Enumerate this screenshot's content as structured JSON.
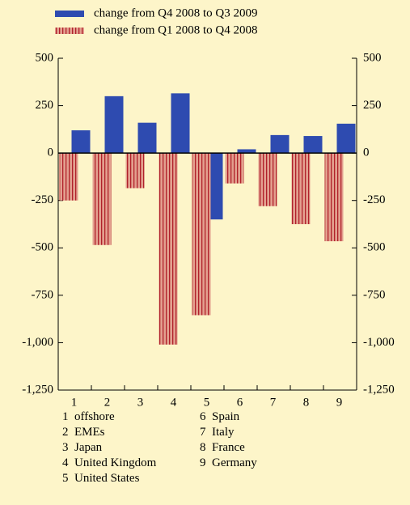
{
  "chart_data": {
    "type": "bar",
    "categories": [
      "1",
      "2",
      "3",
      "4",
      "5",
      "6",
      "7",
      "8",
      "9"
    ],
    "category_names": [
      "offshore",
      "EMEs",
      "Japan",
      "United Kingdom",
      "United States",
      "Spain",
      "Italy",
      "France",
      "Germany"
    ],
    "series": [
      {
        "name": "change from Q4 2008 to Q3 2009",
        "color": "#2e4bb0",
        "values": [
          120,
          300,
          160,
          315,
          -350,
          20,
          95,
          90,
          155
        ]
      },
      {
        "name": "change from Q1 2008 to Q4 2008",
        "color": "#e3a08f",
        "stripe_color": "#b0202a",
        "values": [
          -250,
          -485,
          -185,
          -1010,
          -855,
          -160,
          -280,
          -375,
          -465
        ]
      }
    ],
    "ylim": [
      -1250,
      500
    ],
    "yticks": [
      {
        "value": -1250,
        "label": "-1,250"
      },
      {
        "value": -1000,
        "label": "-1,000"
      },
      -750,
      -500,
      -250,
      0,
      250,
      500
    ],
    "grid": false
  }
}
